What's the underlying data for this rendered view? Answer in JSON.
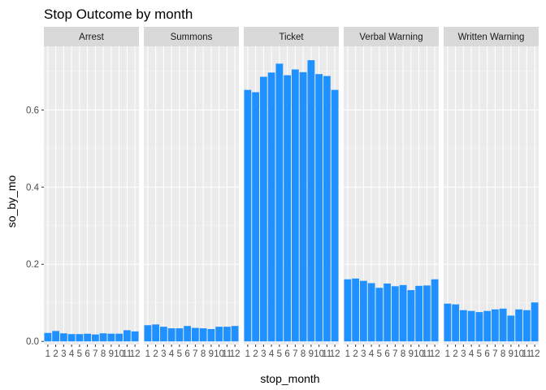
{
  "chart_data": {
    "type": "bar",
    "title": "Stop Outcome by month",
    "xlabel": "stop_month",
    "ylabel": "so_by_mo",
    "ylim": [
      -0.008,
      0.765
    ],
    "yticks": [
      0.0,
      0.2,
      0.4,
      0.6
    ],
    "ytick_labels": [
      "0.0",
      "0.2",
      "0.4",
      "0.6"
    ],
    "categories": [
      "1",
      "2",
      "3",
      "4",
      "5",
      "6",
      "7",
      "8",
      "9",
      "10",
      "11",
      "12"
    ],
    "bar_color": "#1E90FF",
    "panel_background": "#EBEBEB",
    "strip_background": "#D9D9D9",
    "grid": true,
    "panels": [
      {
        "name": "Arrest",
        "values": [
          0.022,
          0.027,
          0.021,
          0.019,
          0.019,
          0.02,
          0.018,
          0.021,
          0.02,
          0.02,
          0.029,
          0.026
        ]
      },
      {
        "name": "Summons",
        "values": [
          0.042,
          0.044,
          0.038,
          0.034,
          0.034,
          0.04,
          0.035,
          0.034,
          0.032,
          0.038,
          0.038,
          0.04
        ]
      },
      {
        "name": "Ticket",
        "values": [
          0.652,
          0.646,
          0.686,
          0.697,
          0.72,
          0.69,
          0.705,
          0.698,
          0.729,
          0.693,
          0.688,
          0.652
        ]
      },
      {
        "name": "Verbal Warning",
        "values": [
          0.161,
          0.163,
          0.157,
          0.151,
          0.139,
          0.15,
          0.143,
          0.146,
          0.133,
          0.144,
          0.145,
          0.161
        ]
      },
      {
        "name": "Written Warning",
        "values": [
          0.098,
          0.096,
          0.081,
          0.079,
          0.076,
          0.079,
          0.083,
          0.085,
          0.067,
          0.083,
          0.081,
          0.101
        ]
      }
    ]
  }
}
